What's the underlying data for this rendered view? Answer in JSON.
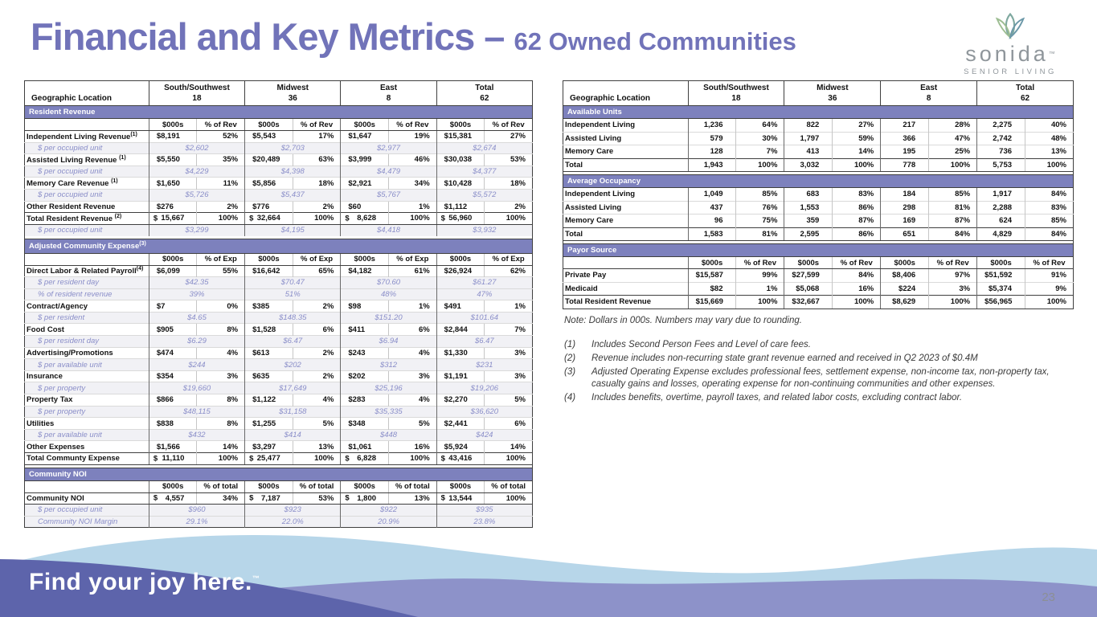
{
  "title": {
    "main": "Financial and Key Metrics – ",
    "highlight": "62 Owned Communities"
  },
  "logo": {
    "name": "sonida",
    "tm": "™",
    "tagline": "SENIOR LIVING"
  },
  "colors": {
    "accent_purple": "#7173b9",
    "section_bar": "#7d81bd",
    "sub_row_text": "#8a8ec9",
    "wave_light_blue": "#b7d6e9",
    "wave_periwinkle": "#8d92c9",
    "wave_dark_purple": "#5d64ab",
    "logo_teal": "#7fa9a0"
  },
  "left_table": {
    "geo_label": "Geographic Location",
    "columns": [
      {
        "name": "South/Southwest",
        "count": "18"
      },
      {
        "name": "Midwest",
        "count": "36"
      },
      {
        "name": "East",
        "count": "8"
      },
      {
        "name": "Total",
        "count": "62"
      }
    ],
    "sections": [
      {
        "title": "Resident Revenue",
        "subheader": [
          "$000s",
          "% of Rev"
        ],
        "rows": [
          {
            "type": "data",
            "label": "Independent Living Revenue",
            "sup": "(1)",
            "cells": [
              "$8,191",
              "52%",
              "$5,543",
              "17%",
              "$1,647",
              "19%",
              "$15,381",
              "27%"
            ]
          },
          {
            "type": "sub",
            "label": "$ per occupied unit",
            "cells": [
              "$2,602",
              "$2,703",
              "$2,977",
              "$2,674"
            ]
          },
          {
            "type": "data",
            "label": "Assisted Living Revenue ",
            "sup": "(1)",
            "cells": [
              "$5,550",
              "35%",
              "$20,489",
              "63%",
              "$3,999",
              "46%",
              "$30,038",
              "53%"
            ]
          },
          {
            "type": "sub",
            "label": "$ per occupied unit",
            "cells": [
              "$4,229",
              "$4,398",
              "$4,479",
              "$4,377"
            ]
          },
          {
            "type": "data",
            "label": "Memory Care Revenue ",
            "sup": "(1)",
            "cells": [
              "$1,650",
              "11%",
              "$5,856",
              "18%",
              "$2,921",
              "34%",
              "$10,428",
              "18%"
            ]
          },
          {
            "type": "sub",
            "label": "$ per occupied unit",
            "cells": [
              "$5,726",
              "$5,437",
              "$5,767",
              "$5,572"
            ]
          },
          {
            "type": "data",
            "label": "Other Resident Revenue",
            "cells": [
              "$276",
              "2%",
              "$776",
              "2%",
              "$60",
              "1%",
              "$1,112",
              "2%"
            ]
          },
          {
            "type": "money-total",
            "label": "Total Resident Revenue ",
            "sup": "(2)",
            "cells": [
              "15,667",
              "100%",
              "32,664",
              "100%",
              "8,628",
              "100%",
              "56,960",
              "100%"
            ]
          },
          {
            "type": "sub",
            "label": "$ per occupied unit",
            "cells": [
              "$3,299",
              "$4,195",
              "$4,418",
              "$3,932"
            ]
          }
        ]
      },
      {
        "title": "Adjusted Community Expense",
        "sup": "(3)",
        "gap_before": true,
        "subheader": [
          "$000s",
          "% of Exp"
        ],
        "rows": [
          {
            "type": "data",
            "label": "Direct Labor & Related Payroll",
            "sup": "(4)",
            "cells": [
              "$6,099",
              "55%",
              "$16,642",
              "65%",
              "$4,182",
              "61%",
              "$26,924",
              "62%"
            ]
          },
          {
            "type": "sub",
            "label": "$ per resident day",
            "cells": [
              "$42.35",
              "$70.47",
              "$70.60",
              "$61.27"
            ]
          },
          {
            "type": "sub",
            "label": "% of resident revenue",
            "cells": [
              "39%",
              "51%",
              "48%",
              "47%"
            ]
          },
          {
            "type": "data",
            "label": "Contract/Agency",
            "cells": [
              "$7",
              "0%",
              "$385",
              "2%",
              "$98",
              "1%",
              "$491",
              "1%"
            ]
          },
          {
            "type": "sub",
            "label": "$ per resident",
            "cells": [
              "$4.65",
              "$148.35",
              "$151.20",
              "$101.64"
            ]
          },
          {
            "type": "data",
            "label": "Food Cost",
            "cells": [
              "$905",
              "8%",
              "$1,528",
              "6%",
              "$411",
              "6%",
              "$2,844",
              "7%"
            ]
          },
          {
            "type": "sub",
            "label": "$ per resident day",
            "cells": [
              "$6.29",
              "$6.47",
              "$6.94",
              "$6.47"
            ]
          },
          {
            "type": "data",
            "label": "Advertising/Promotions",
            "cells": [
              "$474",
              "4%",
              "$613",
              "2%",
              "$243",
              "4%",
              "$1,330",
              "3%"
            ]
          },
          {
            "type": "sub",
            "label": "$ per available unit",
            "cells": [
              "$244",
              "$202",
              "$312",
              "$231"
            ]
          },
          {
            "type": "data",
            "label": "Insurance",
            "cells": [
              "$354",
              "3%",
              "$635",
              "2%",
              "$202",
              "3%",
              "$1,191",
              "3%"
            ]
          },
          {
            "type": "sub",
            "label": "$ per property",
            "cells": [
              "$19,660",
              "$17,649",
              "$25,196",
              "$19,206"
            ]
          },
          {
            "type": "data",
            "label": "Property Tax",
            "cells": [
              "$866",
              "8%",
              "$1,122",
              "4%",
              "$283",
              "4%",
              "$2,270",
              "5%"
            ]
          },
          {
            "type": "sub",
            "label": "$ per property",
            "cells": [
              "$48,115",
              "$31,158",
              "$35,335",
              "$36,620"
            ]
          },
          {
            "type": "data",
            "label": "Utilities",
            "cells": [
              "$838",
              "8%",
              "$1,255",
              "5%",
              "$348",
              "5%",
              "$2,441",
              "6%"
            ]
          },
          {
            "type": "sub",
            "label": "$ per available unit",
            "cells": [
              "$432",
              "$414",
              "$448",
              "$424"
            ]
          },
          {
            "type": "data",
            "label": "Other Expenses",
            "cells": [
              "$1,566",
              "14%",
              "$3,297",
              "13%",
              "$1,061",
              "16%",
              "$5,924",
              "14%"
            ]
          },
          {
            "type": "money-total",
            "label": "Total Communty Expense",
            "cells": [
              "11,110",
              "100%",
              "25,477",
              "100%",
              "6,828",
              "100%",
              "43,416",
              "100%"
            ]
          }
        ]
      },
      {
        "title": "Community NOI",
        "gap_before": true,
        "subheader": [
          "$000s",
          "% of total"
        ],
        "rows": [
          {
            "type": "money-total",
            "label": "Community NOI",
            "cells": [
              "4,557",
              "34%",
              "7,187",
              "53%",
              "1,800",
              "13%",
              "13,544",
              "100%"
            ]
          },
          {
            "type": "sub",
            "label": "$ per occupied unit",
            "cells": [
              "$960",
              "$923",
              "$922",
              "$935"
            ]
          },
          {
            "type": "sub",
            "label": "Community NOI Margin",
            "cells": [
              "29.1%",
              "22.0%",
              "20.9%",
              "23.8%"
            ]
          }
        ]
      }
    ]
  },
  "right_table": {
    "geo_label": "Geographic Location",
    "columns": [
      {
        "name": "South/Southwest",
        "count": "18"
      },
      {
        "name": "Midwest",
        "count": "36"
      },
      {
        "name": "East",
        "count": "8"
      },
      {
        "name": "Total",
        "count": "62"
      }
    ],
    "sections": [
      {
        "title": "Available Units",
        "rows": [
          {
            "type": "data",
            "label": "Independent Living",
            "cells": [
              "1,236",
              "64%",
              "822",
              "27%",
              "217",
              "28%",
              "2,275",
              "40%"
            ]
          },
          {
            "type": "data",
            "label": "Assisted Living",
            "cells": [
              "579",
              "30%",
              "1,797",
              "59%",
              "366",
              "47%",
              "2,742",
              "48%"
            ]
          },
          {
            "type": "data",
            "label": "Memory Care",
            "cells": [
              "128",
              "7%",
              "413",
              "14%",
              "195",
              "25%",
              "736",
              "13%"
            ]
          },
          {
            "type": "bold",
            "label": "Total",
            "cells": [
              "1,943",
              "100%",
              "3,032",
              "100%",
              "778",
              "100%",
              "5,753",
              "100%"
            ]
          }
        ]
      },
      {
        "title": "Average Occupancy",
        "gap_before": true,
        "rows": [
          {
            "type": "data",
            "label": "Independent Living",
            "cells": [
              "1,049",
              "85%",
              "683",
              "83%",
              "184",
              "85%",
              "1,917",
              "84%"
            ]
          },
          {
            "type": "data",
            "label": "Assisted Living",
            "cells": [
              "437",
              "76%",
              "1,553",
              "86%",
              "298",
              "81%",
              "2,288",
              "83%"
            ]
          },
          {
            "type": "data",
            "label": "Memory Care",
            "cells": [
              "96",
              "75%",
              "359",
              "87%",
              "169",
              "87%",
              "624",
              "85%"
            ]
          },
          {
            "type": "bold",
            "label": "Total",
            "cells": [
              "1,583",
              "81%",
              "2,595",
              "86%",
              "651",
              "84%",
              "4,829",
              "84%"
            ]
          }
        ]
      },
      {
        "title": "Payor Source",
        "gap_before": true,
        "subheader": [
          "$000s",
          "% of Rev"
        ],
        "rows": [
          {
            "type": "data",
            "label": "Private Pay",
            "cells": [
              "$15,587",
              "99%",
              "$27,599",
              "84%",
              "$8,406",
              "97%",
              "$51,592",
              "91%"
            ]
          },
          {
            "type": "data",
            "label": "Medicaid",
            "cells": [
              "$82",
              "1%",
              "$5,068",
              "16%",
              "$224",
              "3%",
              "$5,374",
              "9%"
            ]
          },
          {
            "type": "bold",
            "label": "Total Resident Revenue",
            "cells": [
              "$15,669",
              "100%",
              "$32,667",
              "100%",
              "$8,629",
              "100%",
              "$56,965",
              "100%"
            ]
          }
        ]
      }
    ]
  },
  "notes": {
    "intro": "Note: Dollars in 000s. Numbers may vary due to rounding.",
    "items": [
      {
        "num": "(1)",
        "text": "Includes Second Person Fees and Level of care fees."
      },
      {
        "num": "(2)",
        "text": "Revenue includes non-recurring state grant revenue earned and received in Q2 2023 of $0.4M"
      },
      {
        "num": "(3)",
        "text": "Adjusted Operating Expense excludes professional fees, settlement expense, non-income tax, non-property tax, casualty gains and losses, operating expense for non-continuing communities and other expenses."
      },
      {
        "num": "(4)",
        "text": "Includes benefits, overtime, payroll taxes, and related labor costs, excluding contract labor."
      }
    ]
  },
  "footer": {
    "tagline": "Find your joy here.",
    "tm": "™",
    "page_number": "23"
  }
}
